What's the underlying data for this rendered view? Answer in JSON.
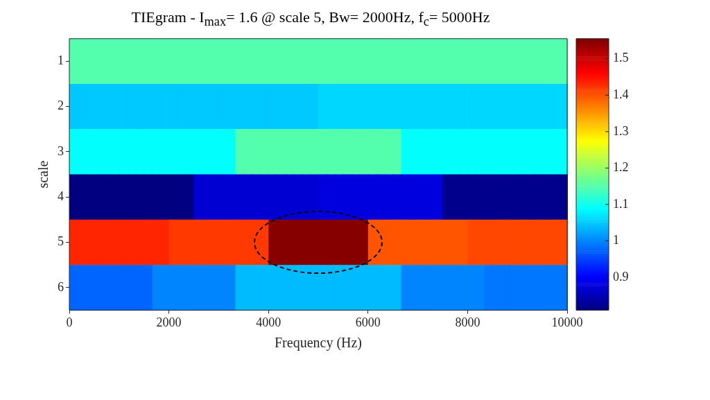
{
  "chart_data": {
    "type": "heatmap",
    "title": "TIEgram - I$_{max}$= 1.6 @ scale 5, Bw= 2000Hz, f$_{c}$= 5000Hz",
    "xlabel": "Frequency (Hz)",
    "ylabel": "scale",
    "xlim": [
      0,
      10000
    ],
    "xticks": [
      0,
      2000,
      4000,
      6000,
      8000,
      10000
    ],
    "y_categories": [
      "1",
      "2",
      "3",
      "4",
      "5",
      "6"
    ],
    "cells": [
      [
        1.15,
        1.15,
        1.15,
        1.15,
        1.15,
        1.15,
        1.15,
        1.15,
        1.15,
        1.15,
        1.15,
        1.15,
        1.15,
        1.15,
        1.15,
        1.15,
        1.15,
        1.15,
        1.15,
        1.15,
        1.15,
        1.15,
        1.15,
        1.15,
        1.15,
        1.15,
        1.15,
        1.15,
        1.15,
        1.15,
        1.15,
        1.15,
        1.15,
        1.15,
        1.15,
        1.15,
        1.15,
        1.15,
        1.15,
        1.15,
        1.15,
        1.15,
        1.15,
        1.15,
        1.15,
        1.15,
        1.15,
        1.15,
        1.15,
        1.15,
        1.15,
        1.15,
        1.15,
        1.15,
        1.15,
        1.15,
        1.15,
        1.15,
        1.15,
        1.15
      ],
      [
        1.05,
        1.05,
        1.05,
        1.05,
        1.05,
        1.05,
        1.05,
        1.05,
        1.05,
        1.05,
        1.05,
        1.05,
        1.05,
        1.05,
        1.05,
        1.05,
        1.05,
        1.05,
        1.05,
        1.05,
        1.05,
        1.05,
        1.05,
        1.05,
        1.05,
        1.05,
        1.05,
        1.05,
        1.05,
        1.05,
        1.06,
        1.06,
        1.06,
        1.06,
        1.06,
        1.06,
        1.06,
        1.06,
        1.06,
        1.06,
        1.06,
        1.06,
        1.06,
        1.06,
        1.06,
        1.06,
        1.06,
        1.06,
        1.06,
        1.06,
        1.06,
        1.06,
        1.06,
        1.06,
        1.06,
        1.06,
        1.06,
        1.06,
        1.06,
        1.06
      ],
      [
        1.09,
        1.09,
        1.09,
        1.09,
        1.09,
        1.09,
        1.09,
        1.09,
        1.09,
        1.09,
        1.09,
        1.09,
        1.09,
        1.09,
        1.09,
        1.09,
        1.09,
        1.09,
        1.09,
        1.09,
        1.15,
        1.15,
        1.15,
        1.15,
        1.15,
        1.15,
        1.15,
        1.15,
        1.15,
        1.15,
        1.15,
        1.15,
        1.15,
        1.15,
        1.15,
        1.15,
        1.15,
        1.15,
        1.15,
        1.15,
        1.09,
        1.09,
        1.09,
        1.09,
        1.09,
        1.09,
        1.09,
        1.09,
        1.09,
        1.09,
        1.09,
        1.09,
        1.09,
        1.09,
        1.09,
        1.09,
        1.09,
        1.09,
        1.09,
        1.09
      ],
      [
        0.81,
        0.81,
        0.81,
        0.81,
        0.81,
        0.81,
        0.81,
        0.81,
        0.81,
        0.81,
        0.81,
        0.81,
        0.81,
        0.81,
        0.81,
        0.87,
        0.87,
        0.87,
        0.87,
        0.87,
        0.87,
        0.87,
        0.87,
        0.87,
        0.87,
        0.87,
        0.87,
        0.87,
        0.87,
        0.87,
        0.88,
        0.88,
        0.88,
        0.88,
        0.88,
        0.88,
        0.88,
        0.88,
        0.88,
        0.88,
        0.88,
        0.88,
        0.88,
        0.88,
        0.88,
        0.82,
        0.82,
        0.82,
        0.82,
        0.82,
        0.82,
        0.82,
        0.82,
        0.82,
        0.82,
        0.82,
        0.82,
        0.82,
        0.82,
        0.82
      ],
      [
        1.435,
        1.435,
        1.435,
        1.435,
        1.435,
        1.435,
        1.435,
        1.435,
        1.435,
        1.435,
        1.435,
        1.435,
        1.42,
        1.42,
        1.42,
        1.42,
        1.42,
        1.42,
        1.42,
        1.42,
        1.42,
        1.42,
        1.42,
        1.42,
        1.55,
        1.55,
        1.55,
        1.55,
        1.55,
        1.55,
        1.55,
        1.55,
        1.55,
        1.55,
        1.55,
        1.55,
        1.4,
        1.4,
        1.4,
        1.4,
        1.4,
        1.4,
        1.4,
        1.4,
        1.4,
        1.4,
        1.4,
        1.4,
        1.41,
        1.41,
        1.41,
        1.41,
        1.41,
        1.41,
        1.41,
        1.41,
        1.41,
        1.41,
        1.41,
        1.41
      ],
      [
        0.977,
        0.977,
        0.977,
        0.977,
        0.977,
        0.977,
        0.977,
        0.977,
        0.977,
        0.977,
        1.0,
        1.0,
        1.0,
        1.0,
        1.0,
        1.0,
        1.0,
        1.0,
        1.0,
        1.0,
        1.04,
        1.04,
        1.04,
        1.04,
        1.04,
        1.04,
        1.04,
        1.04,
        1.04,
        1.04,
        1.04,
        1.04,
        1.04,
        1.04,
        1.04,
        1.04,
        1.04,
        1.04,
        1.04,
        1.04,
        1.0,
        1.0,
        1.0,
        1.0,
        1.0,
        1.0,
        1.0,
        1.0,
        1.0,
        1.0,
        0.99,
        0.99,
        0.99,
        0.99,
        0.99,
        0.99,
        0.99,
        0.99,
        0.99,
        0.99
      ]
    ],
    "clim": [
      0.81,
      1.555
    ],
    "cticks": [
      0.9,
      1,
      1.1,
      1.2,
      1.3,
      1.4,
      1.5
    ],
    "grid": false
  }
}
